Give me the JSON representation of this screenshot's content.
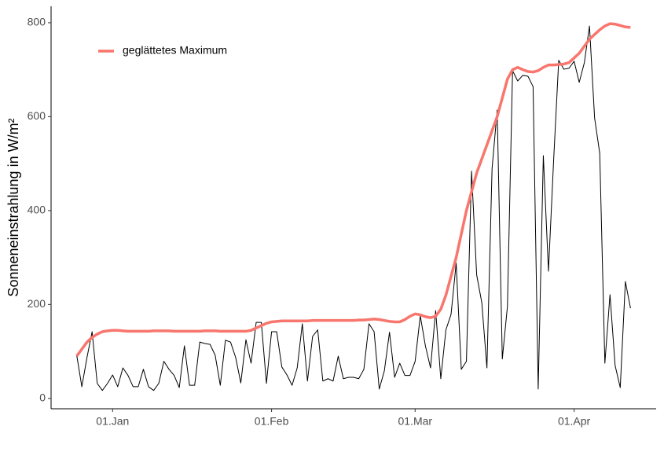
{
  "chart_data": {
    "type": "line",
    "y_label": "Sonneneinstrahlung in W/m²",
    "x": [
      "25.Dec",
      "26.Dec",
      "27.Dec",
      "28.Dec",
      "29.Dec",
      "30.Dec",
      "31.Dec",
      "01.Jan",
      "02.Jan",
      "03.Jan",
      "04.Jan",
      "05.Jan",
      "06.Jan",
      "07.Jan",
      "08.Jan",
      "09.Jan",
      "10.Jan",
      "11.Jan",
      "12.Jan",
      "13.Jan",
      "14.Jan",
      "15.Jan",
      "16.Jan",
      "17.Jan",
      "18.Jan",
      "19.Jan",
      "20.Jan",
      "21.Jan",
      "22.Jan",
      "23.Jan",
      "24.Jan",
      "25.Jan",
      "26.Jan",
      "27.Jan",
      "28.Jan",
      "29.Jan",
      "30.Jan",
      "31.Jan",
      "01.Feb",
      "02.Feb",
      "03.Feb",
      "04.Feb",
      "05.Feb",
      "06.Feb",
      "07.Feb",
      "08.Feb",
      "09.Feb",
      "10.Feb",
      "11.Feb",
      "12.Feb",
      "13.Feb",
      "14.Feb",
      "15.Feb",
      "16.Feb",
      "17.Feb",
      "18.Feb",
      "19.Feb",
      "20.Feb",
      "21.Feb",
      "22.Feb",
      "23.Feb",
      "24.Feb",
      "25.Feb",
      "26.Feb",
      "27.Feb",
      "28.Feb",
      "01.Mar",
      "02.Mar",
      "03.Mar",
      "04.Mar",
      "05.Mar",
      "06.Mar",
      "07.Mar",
      "08.Mar",
      "09.Mar",
      "10.Mar",
      "11.Mar",
      "12.Mar",
      "13.Mar",
      "14.Mar",
      "15.Mar",
      "16.Mar",
      "17.Mar",
      "18.Mar",
      "19.Mar",
      "20.Mar",
      "21.Mar",
      "22.Mar",
      "23.Mar",
      "24.Mar",
      "25.Mar",
      "26.Mar",
      "27.Mar",
      "28.Mar",
      "29.Mar",
      "30.Mar",
      "31.Mar",
      "01.Apr",
      "02.Apr",
      "03.Apr",
      "04.Apr",
      "05.Apr",
      "06.Apr",
      "07.Apr",
      "08.Apr",
      "09.Apr",
      "10.Apr",
      "11.Apr",
      "12.Apr"
    ],
    "series": [
      {
        "color": "#000000",
        "values": [
          92,
          25,
          87,
          142,
          32,
          17,
          32,
          50,
          25,
          65,
          49,
          25,
          25,
          62,
          25,
          17,
          32,
          79,
          62,
          49,
          23,
          112,
          28,
          28,
          120,
          117,
          115,
          92,
          28,
          124,
          120,
          87,
          33,
          125,
          75,
          162,
          162,
          32,
          142,
          142,
          67,
          50,
          28,
          65,
          159,
          37,
          132,
          146,
          37,
          42,
          37,
          90,
          42,
          45,
          45,
          42,
          62,
          159,
          142,
          20,
          59,
          141,
          45,
          75,
          49,
          49,
          79,
          176,
          112,
          65,
          187,
          42,
          146,
          179,
          288,
          62,
          79,
          484,
          263,
          204,
          65,
          489,
          614,
          84,
          196,
          698,
          676,
          688,
          686,
          664,
          20,
          517,
          271,
          505,
          720,
          701,
          703,
          718,
          673,
          715,
          793,
          597,
          522,
          75,
          221,
          70,
          23,
          249,
          192
        ]
      },
      {
        "name": "geglättetes Maximum",
        "color": "#f8766d",
        "values": [
          90,
          105,
          120,
          130,
          137,
          142,
          144,
          145,
          145,
          144,
          143,
          143,
          143,
          143,
          143,
          144,
          144,
          144,
          144,
          143,
          143,
          143,
          143,
          143,
          143,
          144,
          144,
          144,
          143,
          143,
          143,
          143,
          143,
          143,
          145,
          150,
          155,
          160,
          163,
          164,
          165,
          165,
          165,
          165,
          165,
          165,
          166,
          166,
          166,
          166,
          166,
          166,
          166,
          166,
          166,
          167,
          167,
          168,
          169,
          168,
          166,
          164,
          163,
          163,
          168,
          175,
          180,
          178,
          174,
          172,
          175,
          190,
          220,
          260,
          300,
          350,
          400,
          440,
          480,
          510,
          540,
          570,
          600,
          640,
          680,
          700,
          705,
          700,
          696,
          695,
          698,
          705,
          710,
          710,
          711,
          712,
          715,
          725,
          735,
          750,
          765,
          775,
          785,
          793,
          798,
          797,
          794,
          791,
          790
        ]
      }
    ],
    "xlim": [
      "20.Dec",
      "17.Apr"
    ],
    "xticks": [
      "01.Jan",
      "01.Feb",
      "01.Mar",
      "01.Apr"
    ],
    "ylim": [
      -22,
      835
    ],
    "yticks": [
      0,
      200,
      400,
      600,
      800
    ],
    "legend": "top-left"
  }
}
